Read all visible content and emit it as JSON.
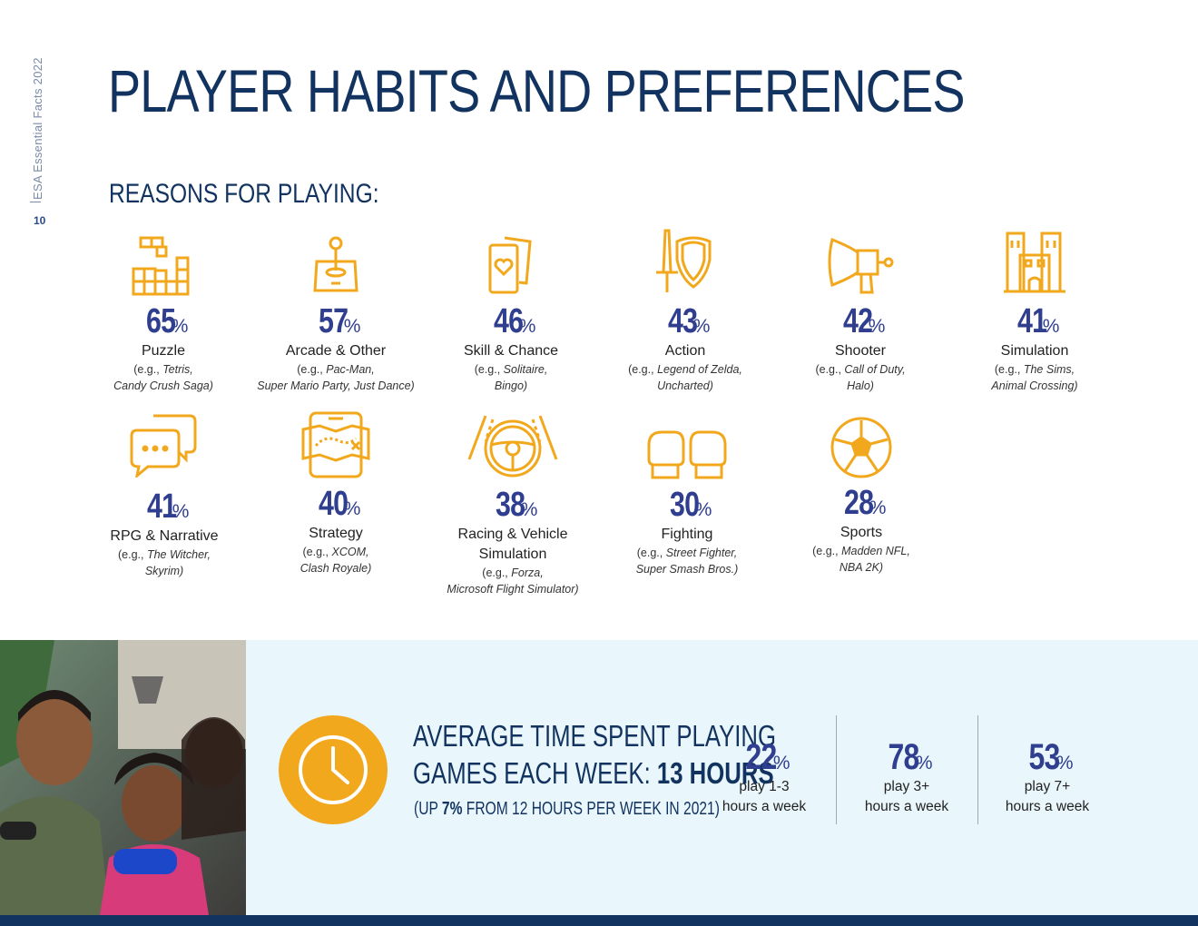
{
  "sidebar": {
    "publication": "ESA Essential Facts 2022",
    "page_number": "10"
  },
  "title": "PLAYER HABITS AND PREFERENCES",
  "subtitle": "REASONS FOR PLAYING:",
  "percent_symbol": "%",
  "accent_color": "#f2a81d",
  "number_color": "#2f3e8f",
  "heading_color": "#12335f",
  "genres": [
    {
      "icon": "tetris-blocks-icon",
      "percent": "65",
      "name": "Puzzle",
      "ex_prefix": "(e.g., ",
      "ex_line1": "Tetris,",
      "ex_line2": "Candy Crush Saga)"
    },
    {
      "icon": "arcade-joystick-icon",
      "percent": "57",
      "name": "Arcade & Other",
      "ex_prefix": "(e.g., ",
      "ex_line1": "Pac-Man,",
      "ex_line2": "Super Mario Party, Just Dance)"
    },
    {
      "icon": "playing-cards-icon",
      "percent": "46",
      "name": "Skill & Chance",
      "ex_prefix": "(e.g., ",
      "ex_line1": "Solitaire,",
      "ex_line2": "Bingo)"
    },
    {
      "icon": "sword-shield-icon",
      "percent": "43",
      "name": "Action",
      "ex_prefix": "(e.g., ",
      "ex_line1": "Legend of Zelda,",
      "ex_line2": "Uncharted)"
    },
    {
      "icon": "blaster-gun-icon",
      "percent": "42",
      "name": "Shooter",
      "ex_prefix": "(e.g., ",
      "ex_line1": "Call of Duty,",
      "ex_line2": "Halo)"
    },
    {
      "icon": "city-buildings-icon",
      "percent": "41",
      "name": "Simulation",
      "ex_prefix": "(e.g., ",
      "ex_line1": "The Sims,",
      "ex_line2": "Animal Crossing)"
    },
    {
      "icon": "chat-bubbles-icon",
      "percent": "41",
      "name": "RPG & Narrative",
      "ex_prefix": "(e.g., ",
      "ex_line1": "The Witcher,",
      "ex_line2": "Skyrim)"
    },
    {
      "icon": "strategy-map-icon",
      "percent": "40",
      "name": "Strategy",
      "ex_prefix": "(e.g., ",
      "ex_line1": "XCOM,",
      "ex_line2": "Clash Royale)"
    },
    {
      "icon": "steering-wheel-icon",
      "percent": "38",
      "name": "Racing & Vehicle",
      "name2": "Simulation",
      "ex_prefix": "(e.g., ",
      "ex_line1": "Forza,",
      "ex_line2": "Microsoft Flight Simulator)"
    },
    {
      "icon": "boxing-gloves-icon",
      "percent": "30",
      "name": "Fighting",
      "ex_prefix": "(e.g., ",
      "ex_line1": "Street Fighter,",
      "ex_line2": "Super Smash Bros.)"
    },
    {
      "icon": "soccer-ball-icon",
      "percent": "28",
      "name": "Sports",
      "ex_prefix": "(e.g., ",
      "ex_line1": "Madden NFL,",
      "ex_line2": "NBA 2K)"
    }
  ],
  "time_section": {
    "title_line1": "AVERAGE TIME SPENT PLAYING",
    "title_line2": "GAMES EACH WEEK: ",
    "title_value": "13 HOURS",
    "note_prefix": "(UP ",
    "note_value": "7%",
    "note_suffix": " FROM 12 HOURS PER WEEK IN 2021)",
    "stats": [
      {
        "percent": "22",
        "line1": "play 1-3",
        "line2": "hours a week"
      },
      {
        "percent": "78",
        "line1": "play 3+",
        "line2": "hours a week"
      },
      {
        "percent": "53",
        "line1": "play 7+",
        "line2": "hours a week"
      }
    ]
  }
}
